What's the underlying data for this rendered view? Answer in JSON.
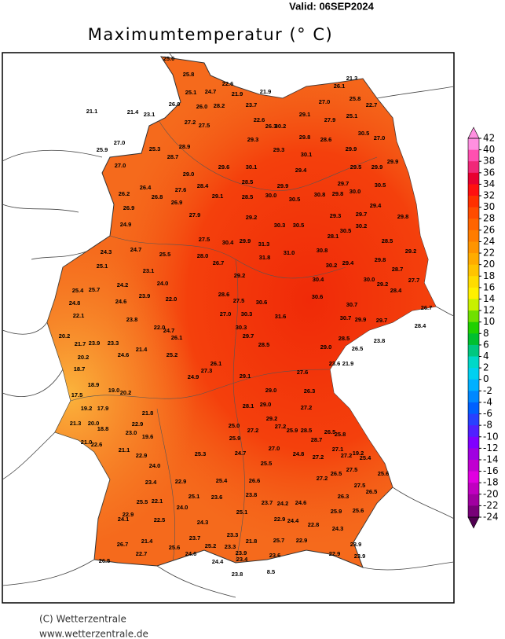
{
  "header": {
    "valid": "Valid:  06SEP2024",
    "title": "Maximumtemperatur (° C)"
  },
  "stations": [
    "25.0",
    "25.8",
    "22.6",
    "25.1",
    "24.7",
    "21.9",
    "21.9",
    "21.3",
    "26.1",
    "21.1",
    "21.4",
    "23.1",
    "26.0",
    "26.0",
    "28.2",
    "23.7",
    "25.8",
    "22.7",
    "27.0",
    "29.1",
    "27.2",
    "27.5",
    "22.6",
    "26.3",
    "30.2",
    "27.9",
    "25.1",
    "30.5",
    "27.0",
    "25.9",
    "27.0",
    "25.3",
    "28.9",
    "29.3",
    "29.8",
    "28.6",
    "27.0",
    "28.7",
    "29.0",
    "30.1",
    "29.6",
    "29.3",
    "30.1",
    "29.9",
    "29.4",
    "29.5",
    "29.9",
    "29.9",
    "26.2",
    "26.4",
    "27.6",
    "28.4",
    "28.5",
    "29.9",
    "29.7",
    "30.5",
    "26.9",
    "26.8",
    "29.1",
    "28.5",
    "30.0",
    "30.5",
    "30.8",
    "29.8",
    "30.0",
    "26.9",
    "29.4",
    "29.3",
    "29.7",
    "29.8",
    "24.9",
    "27.9",
    "29.2",
    "30.3",
    "30.5",
    "30.5",
    "30.2",
    "28.5",
    "29.2",
    "24.3",
    "24.7",
    "25.5",
    "27.5",
    "30.4",
    "29.9",
    "31.3",
    "31.0",
    "30.8",
    "28.1",
    "31.8",
    "28.7",
    "29.4",
    "30.2",
    "29.8",
    "25.1",
    "23.1",
    "28.0",
    "26.7",
    "30.4",
    "29.2",
    "30.0",
    "29.2",
    "27.7",
    "25.4",
    "25.7",
    "24.2",
    "23.9",
    "24.0",
    "22.0",
    "28.6",
    "27.5",
    "30.6",
    "30.6",
    "28.4",
    "30.7",
    "24.8",
    "24.6",
    "22.1",
    "23.8",
    "22.0",
    "27.0",
    "30.3",
    "31.6",
    "30.7",
    "29.9",
    "29.7",
    "26.7",
    "28.4",
    "20.2",
    "21.7",
    "23.9",
    "23.3",
    "24.7",
    "26.1",
    "30.3",
    "29.7",
    "28.5",
    "29.0",
    "28.5",
    "26.5",
    "23.8",
    "20.2",
    "18.7",
    "24.6",
    "21.4",
    "25.2",
    "27.3",
    "26.1",
    "29.1",
    "27.6",
    "23.6",
    "21.9",
    "18.9",
    "19.0",
    "20.2",
    "24.9",
    "29.0",
    "26.3",
    "17.5",
    "19.2",
    "17.9",
    "21.8",
    "28.1",
    "29.0",
    "27.2",
    "21.3",
    "20.0",
    "22.9",
    "25.0",
    "29.2",
    "27.2",
    "18.8",
    "23.0",
    "21.0",
    "22.6",
    "19.6",
    "25.9",
    "27.2",
    "25.9",
    "28.5",
    "26.5",
    "25.8",
    "21.1",
    "28.7",
    "22.9",
    "25.3",
    "24.7",
    "27.0",
    "24.8",
    "27.1",
    "27.2",
    "19.2",
    "25.4",
    "24.0",
    "25.5",
    "27.2",
    "26.5",
    "27.5",
    "25.6",
    "23.4",
    "22.9",
    "25.4",
    "26.6",
    "27.2",
    "27.5",
    "26.5",
    "25.5",
    "22.1",
    "25.1",
    "23.6",
    "23.8",
    "23.7",
    "24.2",
    "24.6",
    "26.3",
    "22.9",
    "24.0",
    "25.1",
    "24.4",
    "22.9",
    "25.9",
    "25.6",
    "24.1",
    "22.5",
    "24.3",
    "22.8",
    "21.4",
    "26.7",
    "23.7",
    "23.3",
    "21.8",
    "25.7",
    "22.9",
    "24.3",
    "23.9",
    "22.7",
    "25.6",
    "24.6",
    "25.2",
    "23.3",
    "23.9",
    "23.6",
    "22.9",
    "23.9",
    "26.5",
    "24.4",
    "23.4",
    "23.8",
    "8.5"
  ],
  "legend": {
    "ticks": [
      42,
      40,
      38,
      36,
      34,
      32,
      30,
      28,
      26,
      24,
      22,
      20,
      18,
      16,
      14,
      12,
      10,
      8,
      6,
      4,
      2,
      0,
      -2,
      -4,
      -6,
      -8,
      -10,
      -12,
      -14,
      -16,
      -18,
      -20,
      -22,
      -24
    ],
    "colors": [
      "#ff90e0",
      "#ff50b0",
      "#f02878",
      "#e80030",
      "#ff1010",
      "#ff3000",
      "#ff4c00",
      "#ff6400",
      "#ff7c00",
      "#ff9400",
      "#ffac00",
      "#ffc400",
      "#ffdc00",
      "#fff000",
      "#c8f000",
      "#70e000",
      "#20d000",
      "#00c030",
      "#00c880",
      "#00d8c8",
      "#00d0f0",
      "#00b0ff",
      "#0088ff",
      "#0060ff",
      "#2840ff",
      "#5020ff",
      "#8000ff",
      "#a000e0",
      "#c000d0",
      "#e000e0",
      "#c000c0",
      "#a000a0",
      "#780078",
      "#500050"
    ]
  },
  "footer": {
    "copyright": "(C) Wetterzentrale",
    "url": "www.wetterzentrale.de"
  }
}
